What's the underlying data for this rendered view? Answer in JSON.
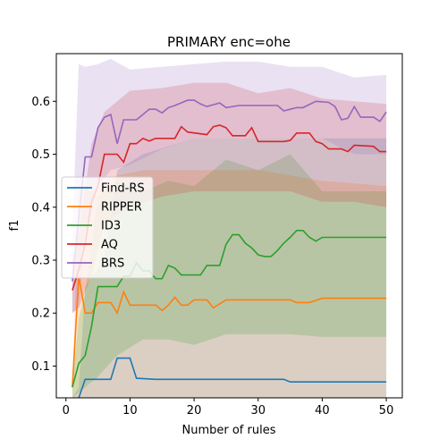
{
  "chart_data": {
    "type": "line",
    "title": "PRIMARY enc=ohe",
    "xlabel": "Number of rules",
    "ylabel": "f1",
    "xlim": [
      -1.5,
      52.5
    ],
    "ylim": [
      0.04,
      0.69
    ],
    "xticks": [
      "0",
      "10",
      "20",
      "30",
      "40",
      "50"
    ],
    "yticks": [
      "0.1",
      "0.2",
      "0.3",
      "0.4",
      "0.5",
      "0.6"
    ],
    "legend_position": "center-left",
    "grid": false,
    "series": [
      {
        "name": "Find-RS",
        "color": "#1f77b4",
        "points": [
          [
            2,
            0.04
          ],
          [
            3,
            0.075
          ],
          [
            7,
            0.075
          ],
          [
            8,
            0.115
          ],
          [
            10,
            0.115
          ],
          [
            11,
            0.077
          ],
          [
            14,
            0.075
          ],
          [
            34,
            0.075
          ],
          [
            35,
            0.07
          ],
          [
            45,
            0.07
          ],
          [
            50,
            0.07
          ]
        ],
        "band": [
          [
            1,
            0.04,
            0.04
          ],
          [
            2,
            0.04,
            0.06
          ],
          [
            3,
            0.04,
            0.25
          ],
          [
            6,
            0.04,
            0.3
          ],
          [
            8,
            0.04,
            0.47
          ],
          [
            12,
            0.04,
            0.5
          ],
          [
            20,
            0.04,
            0.53
          ],
          [
            30,
            0.04,
            0.53
          ],
          [
            40,
            0.04,
            0.53
          ],
          [
            50,
            0.04,
            0.53
          ]
        ]
      },
      {
        "name": "RIPPER",
        "color": "#ff7f0e",
        "points": [
          [
            1,
            0.06
          ],
          [
            2,
            0.27
          ],
          [
            3,
            0.2
          ],
          [
            4,
            0.2
          ],
          [
            5,
            0.22
          ],
          [
            7,
            0.22
          ],
          [
            8,
            0.2
          ],
          [
            9,
            0.24
          ],
          [
            10,
            0.215
          ],
          [
            14,
            0.215
          ],
          [
            15,
            0.205
          ],
          [
            16,
            0.215
          ],
          [
            17,
            0.23
          ],
          [
            18,
            0.215
          ],
          [
            19,
            0.215
          ],
          [
            20,
            0.225
          ],
          [
            22,
            0.225
          ],
          [
            23,
            0.21
          ],
          [
            25,
            0.225
          ],
          [
            35,
            0.225
          ],
          [
            36,
            0.22
          ],
          [
            38,
            0.22
          ],
          [
            40,
            0.228
          ],
          [
            50,
            0.228
          ]
        ],
        "band": [
          [
            1,
            0.04,
            0.06
          ],
          [
            2,
            0.04,
            0.44
          ],
          [
            4,
            0.04,
            0.43
          ],
          [
            8,
            0.04,
            0.46
          ],
          [
            12,
            0.04,
            0.47
          ],
          [
            20,
            0.04,
            0.47
          ],
          [
            30,
            0.04,
            0.47
          ],
          [
            40,
            0.04,
            0.45
          ],
          [
            50,
            0.04,
            0.44
          ]
        ]
      },
      {
        "name": "ID3",
        "color": "#2ca02c",
        "points": [
          [
            1,
            0.06
          ],
          [
            2,
            0.105
          ],
          [
            3,
            0.12
          ],
          [
            4,
            0.175
          ],
          [
            5,
            0.25
          ],
          [
            8,
            0.25
          ],
          [
            9,
            0.27
          ],
          [
            10,
            0.27
          ],
          [
            11,
            0.295
          ],
          [
            12,
            0.28
          ],
          [
            13,
            0.28
          ],
          [
            14,
            0.265
          ],
          [
            15,
            0.265
          ],
          [
            16,
            0.29
          ],
          [
            17,
            0.285
          ],
          [
            18,
            0.272
          ],
          [
            21,
            0.272
          ],
          [
            22,
            0.29
          ],
          [
            24,
            0.29
          ],
          [
            25,
            0.33
          ],
          [
            26,
            0.348
          ],
          [
            27,
            0.348
          ],
          [
            28,
            0.332
          ],
          [
            29,
            0.323
          ],
          [
            30,
            0.31
          ],
          [
            31,
            0.307
          ],
          [
            32,
            0.307
          ],
          [
            33,
            0.318
          ],
          [
            34,
            0.332
          ],
          [
            35,
            0.343
          ],
          [
            36,
            0.356
          ],
          [
            37,
            0.356
          ],
          [
            38,
            0.343
          ],
          [
            39,
            0.336
          ],
          [
            40,
            0.343
          ],
          [
            50,
            0.343
          ]
        ],
        "band": [
          [
            1,
            0.04,
            0.07
          ],
          [
            2,
            0.05,
            0.19
          ],
          [
            3,
            0.06,
            0.24
          ],
          [
            5,
            0.08,
            0.42
          ],
          [
            8,
            0.12,
            0.45
          ],
          [
            12,
            0.15,
            0.43
          ],
          [
            16,
            0.15,
            0.45
          ],
          [
            20,
            0.14,
            0.44
          ],
          [
            25,
            0.16,
            0.49
          ],
          [
            30,
            0.16,
            0.47
          ],
          [
            35,
            0.16,
            0.5
          ],
          [
            40,
            0.155,
            0.43
          ],
          [
            50,
            0.155,
            0.43
          ]
        ]
      },
      {
        "name": "AQ",
        "color": "#d62728",
        "points": [
          [
            1,
            0.243
          ],
          [
            2,
            0.282
          ],
          [
            3,
            0.33
          ],
          [
            4,
            0.41
          ],
          [
            5,
            0.44
          ],
          [
            6,
            0.5
          ],
          [
            8,
            0.5
          ],
          [
            9,
            0.485
          ],
          [
            10,
            0.52
          ],
          [
            11,
            0.52
          ],
          [
            12,
            0.53
          ],
          [
            13,
            0.525
          ],
          [
            14,
            0.53
          ],
          [
            17,
            0.53
          ],
          [
            18,
            0.552
          ],
          [
            19,
            0.542
          ],
          [
            22,
            0.537
          ],
          [
            23,
            0.552
          ],
          [
            24,
            0.555
          ],
          [
            25,
            0.55
          ],
          [
            26,
            0.535
          ],
          [
            28,
            0.535
          ],
          [
            29,
            0.55
          ],
          [
            30,
            0.524
          ],
          [
            34,
            0.524
          ],
          [
            35,
            0.526
          ],
          [
            36,
            0.54
          ],
          [
            38,
            0.54
          ],
          [
            39,
            0.524
          ],
          [
            40,
            0.52
          ],
          [
            41,
            0.51
          ],
          [
            43,
            0.51
          ],
          [
            44,
            0.505
          ],
          [
            45,
            0.517
          ],
          [
            48,
            0.515
          ],
          [
            49,
            0.505
          ],
          [
            50,
            0.505
          ]
        ],
        "band": [
          [
            1,
            0.2,
            0.3
          ],
          [
            2,
            0.21,
            0.35
          ],
          [
            4,
            0.27,
            0.52
          ],
          [
            6,
            0.37,
            0.58
          ],
          [
            10,
            0.4,
            0.62
          ],
          [
            15,
            0.42,
            0.625
          ],
          [
            20,
            0.43,
            0.635
          ],
          [
            25,
            0.43,
            0.635
          ],
          [
            30,
            0.43,
            0.615
          ],
          [
            35,
            0.43,
            0.625
          ],
          [
            40,
            0.41,
            0.605
          ],
          [
            45,
            0.41,
            0.6
          ],
          [
            50,
            0.4,
            0.595
          ]
        ]
      },
      {
        "name": "BRS",
        "color": "#9467bd",
        "points": [
          [
            1,
            0.26
          ],
          [
            2,
            0.38
          ],
          [
            3,
            0.495
          ],
          [
            4,
            0.495
          ],
          [
            5,
            0.55
          ],
          [
            6,
            0.57
          ],
          [
            7,
            0.575
          ],
          [
            8,
            0.52
          ],
          [
            9,
            0.565
          ],
          [
            10,
            0.565
          ],
          [
            11,
            0.565
          ],
          [
            12,
            0.575
          ],
          [
            13,
            0.585
          ],
          [
            14,
            0.585
          ],
          [
            15,
            0.578
          ],
          [
            16,
            0.588
          ],
          [
            17,
            0.592
          ],
          [
            19,
            0.602
          ],
          [
            20,
            0.602
          ],
          [
            21,
            0.595
          ],
          [
            22,
            0.59
          ],
          [
            24,
            0.597
          ],
          [
            25,
            0.588
          ],
          [
            27,
            0.592
          ],
          [
            33,
            0.592
          ],
          [
            34,
            0.582
          ],
          [
            35,
            0.585
          ],
          [
            36,
            0.588
          ],
          [
            37,
            0.588
          ],
          [
            39,
            0.6
          ],
          [
            41,
            0.598
          ],
          [
            42,
            0.59
          ],
          [
            43,
            0.565
          ],
          [
            44,
            0.568
          ],
          [
            45,
            0.59
          ],
          [
            46,
            0.57
          ],
          [
            48,
            0.57
          ],
          [
            49,
            0.562
          ],
          [
            50,
            0.58
          ]
        ],
        "band": [
          [
            1,
            0.2,
            0.35
          ],
          [
            2,
            0.21,
            0.67
          ],
          [
            3,
            0.35,
            0.665
          ],
          [
            5,
            0.44,
            0.67
          ],
          [
            7,
            0.47,
            0.68
          ],
          [
            10,
            0.48,
            0.66
          ],
          [
            15,
            0.51,
            0.665
          ],
          [
            20,
            0.53,
            0.67
          ],
          [
            25,
            0.53,
            0.675
          ],
          [
            30,
            0.53,
            0.675
          ],
          [
            35,
            0.53,
            0.665
          ],
          [
            40,
            0.53,
            0.665
          ],
          [
            45,
            0.5,
            0.645
          ],
          [
            50,
            0.5,
            0.65
          ]
        ]
      }
    ]
  }
}
